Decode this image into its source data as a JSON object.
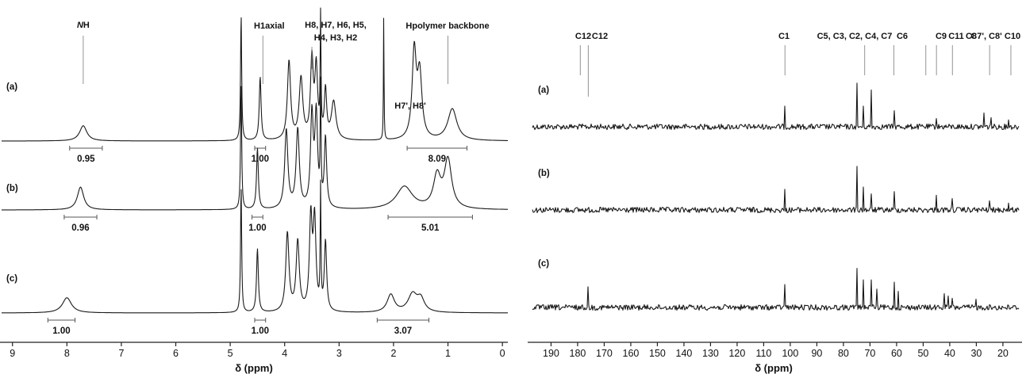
{
  "chart_data": [
    {
      "type": "line",
      "xlabel": "δ (ppm)",
      "xlim": [
        9.2,
        -0.1
      ],
      "xticks": [
        9,
        8,
        7,
        6,
        5,
        4,
        3,
        2,
        1,
        0
      ],
      "annotations": [
        {
          "text": "NH",
          "x": 7.7,
          "italic_prefix": "N",
          "suffix": "H"
        },
        {
          "text": "H1axial",
          "x": 4.4
        },
        {
          "lines": [
            "H8, H7, H6, H5,",
            "H4, H3, H2"
          ],
          "x": 3.5
        },
        {
          "text": "Hpolymer backbone",
          "x": 1.0
        },
        {
          "text": "H7', H8'",
          "x": 1.9
        }
      ],
      "series": [
        {
          "label": "(a)",
          "peaks": [
            [
              7.7,
              0.12,
              0.08
            ],
            [
              4.8,
              1.0,
              0.012
            ],
            [
              4.45,
              0.5,
              0.02
            ],
            [
              3.92,
              0.62,
              0.035
            ],
            [
              3.7,
              0.48,
              0.04
            ],
            [
              3.5,
              0.62,
              0.03
            ],
            [
              3.42,
              0.55,
              0.03
            ],
            [
              3.34,
              1.0,
              0.008
            ],
            [
              3.25,
              0.38,
              0.025
            ],
            [
              3.1,
              0.3,
              0.05
            ],
            [
              2.18,
              1.0,
              0.006
            ],
            [
              1.62,
              0.68,
              0.045
            ],
            [
              1.52,
              0.5,
              0.05
            ],
            [
              0.92,
              0.25,
              0.1
            ]
          ],
          "integrals": [
            {
              "from": 7.95,
              "to": 7.35,
              "value": "0.95"
            },
            {
              "from": 4.55,
              "to": 4.35,
              "value": "1.00"
            },
            {
              "from": 1.75,
              "to": 0.65,
              "value": "8.09"
            }
          ]
        },
        {
          "label": "(b)",
          "peaks": [
            [
              7.75,
              0.18,
              0.07
            ],
            [
              4.8,
              1.0,
              0.012
            ],
            [
              4.5,
              0.48,
              0.02
            ],
            [
              3.97,
              0.62,
              0.035
            ],
            [
              3.76,
              0.62,
              0.035
            ],
            [
              3.5,
              0.72,
              0.03
            ],
            [
              3.42,
              0.72,
              0.03
            ],
            [
              3.34,
              1.0,
              0.008
            ],
            [
              3.25,
              0.55,
              0.025
            ],
            [
              1.8,
              0.18,
              0.18
            ],
            [
              1.2,
              0.25,
              0.08
            ],
            [
              1.0,
              0.38,
              0.08
            ]
          ],
          "integrals": [
            {
              "from": 8.05,
              "to": 7.45,
              "value": "0.96"
            },
            {
              "from": 4.6,
              "to": 4.4,
              "value": "1.00"
            },
            {
              "from": 2.1,
              "to": 0.55,
              "value": "5.01"
            }
          ]
        },
        {
          "label": "(c)",
          "peaks": [
            [
              8.0,
              0.12,
              0.1
            ],
            [
              4.8,
              1.0,
              0.012
            ],
            [
              4.5,
              0.5,
              0.02
            ],
            [
              3.95,
              0.62,
              0.035
            ],
            [
              3.76,
              0.55,
              0.035
            ],
            [
              3.52,
              0.72,
              0.03
            ],
            [
              3.45,
              0.7,
              0.03
            ],
            [
              3.34,
              1.0,
              0.008
            ],
            [
              3.25,
              0.55,
              0.025
            ],
            [
              2.05,
              0.14,
              0.08
            ],
            [
              1.65,
              0.14,
              0.1
            ],
            [
              1.5,
              0.1,
              0.08
            ]
          ],
          "integrals": [
            {
              "from": 8.35,
              "to": 7.85,
              "value": "1.00"
            },
            {
              "from": 4.55,
              "to": 4.35,
              "value": "1.00"
            },
            {
              "from": 2.3,
              "to": 1.35,
              "value": "3.07"
            }
          ]
        }
      ]
    },
    {
      "type": "line",
      "xlabel": "δ (ppm)",
      "xlim": [
        197,
        14
      ],
      "xticks": [
        190,
        180,
        170,
        160,
        150,
        140,
        130,
        120,
        110,
        100,
        90,
        80,
        70,
        60,
        50,
        40,
        30,
        20
      ],
      "annotations": [
        {
          "text": "C12",
          "x": 179
        },
        {
          "text": "C12",
          "x": 176
        },
        {
          "text": "C1",
          "x": 102
        },
        {
          "text": "C5, C3, C2, C4, C7",
          "x": 72
        },
        {
          "text": "C6",
          "x": 61
        },
        {
          "text": "C9",
          "x": 49
        },
        {
          "text": "C11",
          "x": 45
        },
        {
          "text": "C8",
          "x": 39
        },
        {
          "text": "C7', C8'",
          "x": 25
        },
        {
          "text": "C10",
          "x": 17
        }
      ],
      "series": [
        {
          "label": "(a)",
          "peaks": [
            [
              102,
              0.45
            ],
            [
              75,
              0.95
            ],
            [
              72.5,
              0.45
            ],
            [
              69.5,
              0.8
            ],
            [
              61,
              0.35
            ],
            [
              45,
              0.18
            ],
            [
              27,
              0.3
            ],
            [
              24.5,
              0.2
            ],
            [
              18,
              0.15
            ]
          ]
        },
        {
          "label": "(b)",
          "peaks": [
            [
              102,
              0.45
            ],
            [
              75,
              0.95
            ],
            [
              72.5,
              0.5
            ],
            [
              69.5,
              0.35
            ],
            [
              61,
              0.4
            ],
            [
              45,
              0.32
            ],
            [
              39,
              0.25
            ],
            [
              25,
              0.2
            ],
            [
              18,
              0.15
            ]
          ]
        },
        {
          "label": "(c)",
          "peaks": [
            [
              176,
              0.45
            ],
            [
              102,
              0.5
            ],
            [
              75,
              0.85
            ],
            [
              72.5,
              0.6
            ],
            [
              69.5,
              0.6
            ],
            [
              67.5,
              0.4
            ],
            [
              61,
              0.55
            ],
            [
              59.5,
              0.35
            ],
            [
              42,
              0.3
            ],
            [
              40.5,
              0.25
            ],
            [
              39,
              0.2
            ],
            [
              30,
              0.18
            ]
          ]
        }
      ]
    }
  ]
}
